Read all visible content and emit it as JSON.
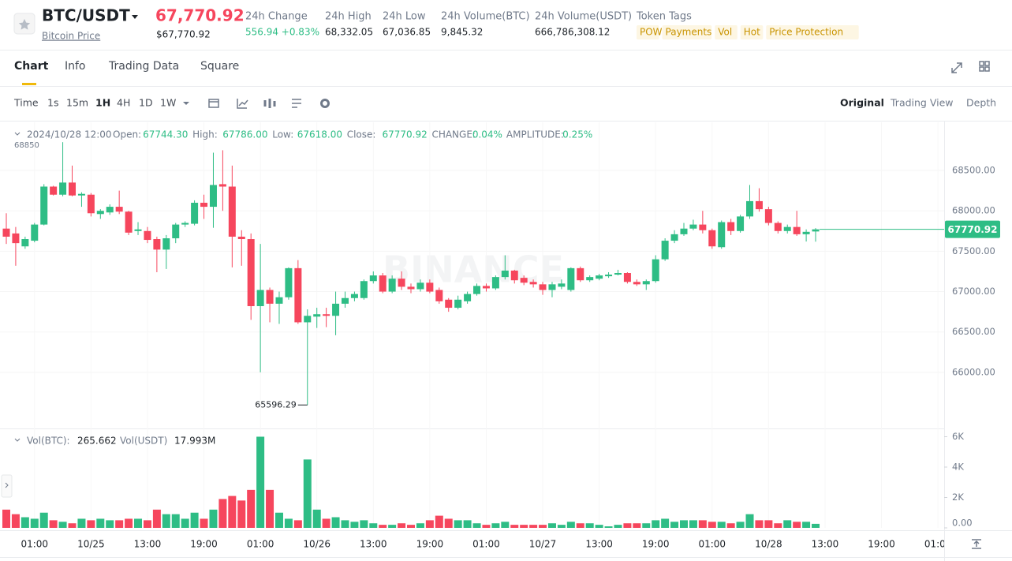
{
  "header": {
    "symbol": "BTC/USDT",
    "subtitle": "Bitcoin Price",
    "price": "67,770.92",
    "price_usd": "$67,770.92",
    "stats": [
      {
        "label": "24h Change",
        "value": "556.94 +0.83%"
      },
      {
        "label": "24h High",
        "value": "68,332.05"
      },
      {
        "label": "24h Low",
        "value": "67,036.85"
      },
      {
        "label": "24h Volume(BTC)",
        "value": "9,845.32"
      },
      {
        "label": "24h Volume(USDT)",
        "value": "666,786,308.12"
      }
    ],
    "tags_label": "Token Tags",
    "tags": [
      "POW",
      "Payments",
      "Vol",
      "Hot",
      "Price Protection"
    ]
  },
  "tabs": [
    "Chart",
    "Info",
    "Trading Data",
    "Square"
  ],
  "toolbar": {
    "intervals": [
      "Time",
      "1s",
      "15m",
      "1H",
      "4H",
      "1D",
      "1W"
    ],
    "views": [
      "Original",
      "Trading View",
      "Depth"
    ]
  },
  "legend": {
    "time": "2024/10/28 12:00",
    "items": [
      {
        "label": "Open:",
        "value": "67744.30"
      },
      {
        "label": "High:",
        "value": "67786.00"
      },
      {
        "label": "Low:",
        "value": "67618.00"
      },
      {
        "label": "Close:",
        "value": "67770.92"
      },
      {
        "label": "CHANGE:",
        "value": "0.04%"
      },
      {
        "label": "AMPLITUDE:",
        "value": "0.25%"
      }
    ]
  },
  "volume_legend": {
    "btc_label": "Vol(BTC):",
    "usdt_label": "Vol(USDT)",
    "usdt_value": "17.993M"
  },
  "watermark": "BINANCE",
  "chart_data": {
    "type": "candlestick",
    "up_color": "#2ebd85",
    "down_color": "#f6465d",
    "open": [
      67780,
      67720,
      67560,
      67630,
      67830,
      68300,
      68200,
      68350,
      68190,
      68200,
      67960,
      67980,
      68050,
      67990,
      67750,
      67750,
      67650,
      67520,
      67660,
      67830,
      67840,
      68100,
      68050,
      68330,
      68300,
      67680,
      67650,
      66820,
      67020,
      66850,
      66930,
      67290,
      66620,
      66690,
      66720,
      66700,
      66850,
      66920,
      66920,
      67130,
      67200,
      67000,
      67160,
      67060,
      67030,
      67110,
      67020,
      66900,
      66800,
      66880,
      66970,
      67070,
      67040,
      67180,
      67260,
      67170,
      67120,
      67090,
      67020,
      67060,
      67020,
      67290,
      67140,
      67160,
      67190,
      67210,
      67230,
      67120,
      67090,
      67130,
      67400,
      67630,
      67710,
      67780,
      67830,
      67760,
      67550,
      67860,
      67750,
      67930,
      68120,
      68020,
      67850,
      67750,
      67800,
      67710,
      67744.3
    ],
    "high": [
      67970,
      67800,
      67680,
      67850,
      68330,
      68310,
      68850,
      68560,
      68230,
      68220,
      68020,
      68080,
      68250,
      68000,
      67860,
      67800,
      67680,
      67700,
      67850,
      67870,
      68130,
      68200,
      68720,
      68750,
      68560,
      67760,
      67720,
      67590,
      67050,
      67000,
      67300,
      67390,
      66780,
      66800,
      66800,
      67000,
      67000,
      67000,
      67150,
      67250,
      67230,
      67200,
      67250,
      67100,
      67150,
      67150,
      67050,
      66920,
      66950,
      67000,
      67100,
      67100,
      67200,
      67450,
      67270,
      67200,
      67150,
      67120,
      67120,
      67150,
      67300,
      67310,
      67200,
      67220,
      67240,
      67270,
      67240,
      67150,
      67150,
      67450,
      67660,
      67760,
      67850,
      67890,
      68000,
      67780,
      67880,
      67900,
      67950,
      68320,
      68280,
      68050,
      67870,
      67830,
      68000,
      67770,
      67786
    ],
    "low": [
      67590,
      67320,
      67530,
      67610,
      67820,
      68190,
      68180,
      68180,
      68050,
      67930,
      67900,
      67950,
      67960,
      67700,
      67700,
      67600,
      67240,
      67280,
      67600,
      67800,
      67820,
      67900,
      67790,
      68000,
      67300,
      67320,
      66650,
      66000,
      66620,
      66600,
      66900,
      66600,
      65596.29,
      66550,
      66560,
      66460,
      66800,
      66880,
      66900,
      67100,
      66980,
      66980,
      67020,
      66980,
      67000,
      66980,
      66850,
      66750,
      66780,
      66850,
      66950,
      67000,
      67020,
      67150,
      67100,
      67080,
      67050,
      66960,
      66930,
      67030,
      67000,
      67120,
      67120,
      67140,
      67170,
      67200,
      67100,
      67070,
      67020,
      67110,
      67380,
      67600,
      67690,
      67760,
      67720,
      67530,
      67530,
      67700,
      67730,
      67900,
      67990,
      67820,
      67720,
      67720,
      67690,
      67620,
      67618
    ],
    "close": [
      67680,
      67600,
      67650,
      67830,
      68300,
      68200,
      68350,
      68190,
      68210,
      67970,
      68000,
      68050,
      67990,
      67730,
      67770,
      67640,
      67520,
      67660,
      67830,
      67850,
      68100,
      68050,
      68320,
      68300,
      67680,
      67650,
      66820,
      67020,
      66850,
      66930,
      67290,
      66620,
      66700,
      66720,
      66700,
      66850,
      66920,
      66970,
      67130,
      67200,
      67000,
      67160,
      67060,
      67030,
      67110,
      67000,
      66880,
      66800,
      66900,
      66970,
      67070,
      67040,
      67180,
      67260,
      67140,
      67110,
      67090,
      67020,
      67090,
      67100,
      67290,
      67140,
      67180,
      67200,
      67210,
      67230,
      67120,
      67090,
      67130,
      67400,
      67630,
      67710,
      67780,
      67830,
      67760,
      67560,
      67860,
      67750,
      67930,
      68120,
      68020,
      67850,
      67750,
      67800,
      67710,
      67740,
      67770.92
    ],
    "volume": [
      1200,
      900,
      700,
      600,
      1000,
      500,
      400,
      300,
      600,
      500,
      600,
      500,
      500,
      600,
      600,
      500,
      1200,
      900,
      900,
      600,
      1000,
      600,
      1200,
      1900,
      2100,
      1800,
      2500,
      6000,
      2500,
      1000,
      600,
      500,
      4500,
      1200,
      600,
      700,
      500,
      400,
      500,
      300,
      200,
      200,
      300,
      200,
      300,
      500,
      800,
      600,
      500,
      500,
      300,
      200,
      300,
      400,
      200,
      200,
      200,
      200,
      300,
      200,
      400,
      300,
      300,
      200,
      100,
      200,
      300,
      300,
      300,
      500,
      600,
      400,
      500,
      500,
      500,
      400,
      400,
      300,
      400,
      900,
      500,
      500,
      300,
      500,
      400,
      400,
      265.662
    ],
    "xlim": [
      -0.67,
      99.66
    ],
    "xticks": [
      {
        "value": 3,
        "label": "01:00"
      },
      {
        "value": 9,
        "label": "10/25"
      },
      {
        "value": 15,
        "label": "13:00"
      },
      {
        "value": 21,
        "label": "19:00"
      },
      {
        "value": 27,
        "label": "01:00"
      },
      {
        "value": 33,
        "label": "10/26"
      },
      {
        "value": 39,
        "label": "13:00"
      },
      {
        "value": 45,
        "label": "19:00"
      },
      {
        "value": 51,
        "label": "01:00"
      },
      {
        "value": 57,
        "label": "10/27"
      },
      {
        "value": 63,
        "label": "13:00"
      },
      {
        "value": 69,
        "label": "19:00"
      },
      {
        "value": 75,
        "label": "01:00"
      },
      {
        "value": 81,
        "label": "10/28"
      },
      {
        "value": 87,
        "label": "13:00"
      },
      {
        "value": 93,
        "label": "19:00"
      },
      {
        "value": 99,
        "label": "01:00"
      }
    ],
    "ylim": [
      65335,
      69096
    ],
    "yticks": [
      {
        "value": 66000,
        "label": "66000.00"
      },
      {
        "value": 66500,
        "label": "66500.00"
      },
      {
        "value": 67000,
        "label": "67000.00"
      },
      {
        "value": 67500,
        "label": "67500.00"
      },
      {
        "value": 68000,
        "label": "68000.00"
      },
      {
        "value": 68500,
        "label": "68500.00"
      }
    ],
    "vol_ylim": [
      0,
      6180
    ],
    "vol_yticks": [
      {
        "value": 0,
        "label": "0.00"
      },
      {
        "value": 2000,
        "label": "2K"
      },
      {
        "value": 4000,
        "label": "4K"
      },
      {
        "value": 6000,
        "label": "6K"
      }
    ],
    "grid": true
  }
}
